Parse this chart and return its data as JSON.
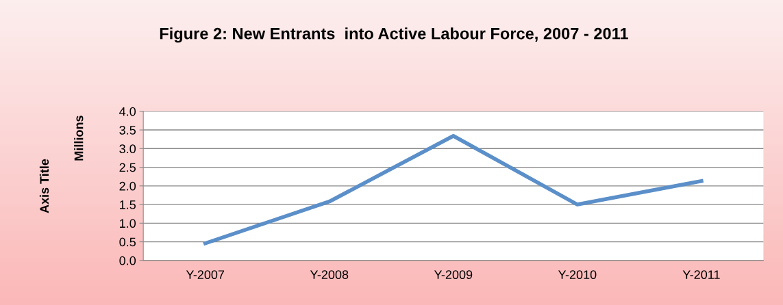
{
  "chart_data": {
    "type": "line",
    "title": "Figure 2: New Entrants  into Active Labour Force, 2007 - 2011",
    "ylabel": "Millions",
    "annotations": [
      "Axis Title"
    ],
    "categories": [
      "Y-2007",
      "Y-2008",
      "Y-2009",
      "Y-2010",
      "Y-2011"
    ],
    "series": [
      {
        "color": "#5b8fc9",
        "values": [
          0.46,
          1.58,
          3.34,
          1.5,
          2.13
        ]
      }
    ],
    "ylim": [
      0,
      4
    ],
    "yticks": [
      {
        "value": 0,
        "label": "0.0"
      },
      {
        "value": 0.5,
        "label": "0.5"
      },
      {
        "value": 1,
        "label": "1.0"
      },
      {
        "value": 1.5,
        "label": "1.5"
      },
      {
        "value": 2,
        "label": "2.0"
      },
      {
        "value": 2.5,
        "label": "2.5"
      },
      {
        "value": 3,
        "label": "3.0"
      },
      {
        "value": 3.5,
        "label": "3.5"
      },
      {
        "value": 4,
        "label": "4.0"
      }
    ],
    "grid": "y",
    "legend": false,
    "marker": "none",
    "line_style": "solid"
  }
}
